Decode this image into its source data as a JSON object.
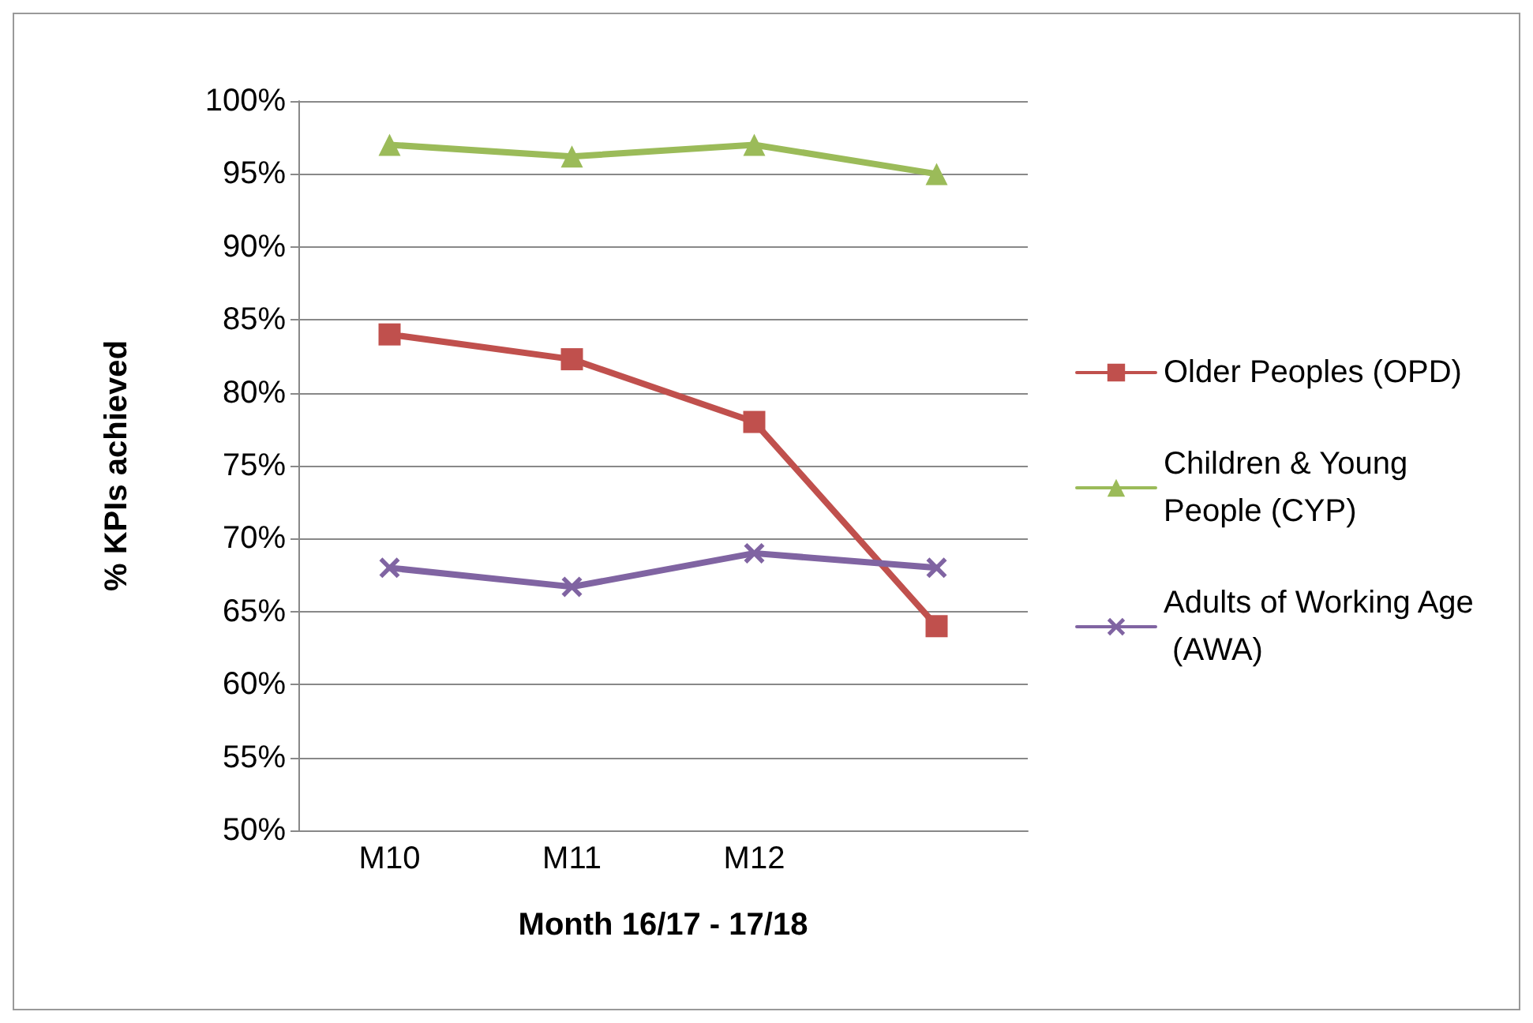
{
  "chart_data": {
    "type": "line",
    "xlabel": "Month 16/17 - 17/18",
    "ylabel": "% KPIs achieved",
    "categories": [
      "M10",
      "M11",
      "M12",
      null
    ],
    "ylim": [
      50,
      100
    ],
    "yticks": [
      {
        "value": 50,
        "label": "50%"
      },
      {
        "value": 55,
        "label": "55%"
      },
      {
        "value": 60,
        "label": "60%"
      },
      {
        "value": 65,
        "label": "65%"
      },
      {
        "value": 70,
        "label": "70%"
      },
      {
        "value": 75,
        "label": "75%"
      },
      {
        "value": 80,
        "label": "80%"
      },
      {
        "value": 85,
        "label": "85%"
      },
      {
        "value": 90,
        "label": "90%"
      },
      {
        "value": 95,
        "label": "95%"
      },
      {
        "value": 100,
        "label": "100%"
      }
    ],
    "grid": "y",
    "legend": "right",
    "line_style": "solid",
    "series": [
      {
        "name": "Older Peoples (OPD)",
        "color": "#c0504d",
        "marker": "square",
        "values": [
          84,
          82.3,
          78,
          64
        ]
      },
      {
        "name": "Children & Young People (CYP)",
        "color": "#9bbb59",
        "marker": "triangle",
        "values": [
          97,
          96.2,
          97,
          95
        ]
      },
      {
        "name": "Adults of Working Age (AWA)",
        "color": "#8064a2",
        "marker": "cross",
        "values": [
          68,
          66.7,
          69,
          68
        ]
      }
    ]
  }
}
